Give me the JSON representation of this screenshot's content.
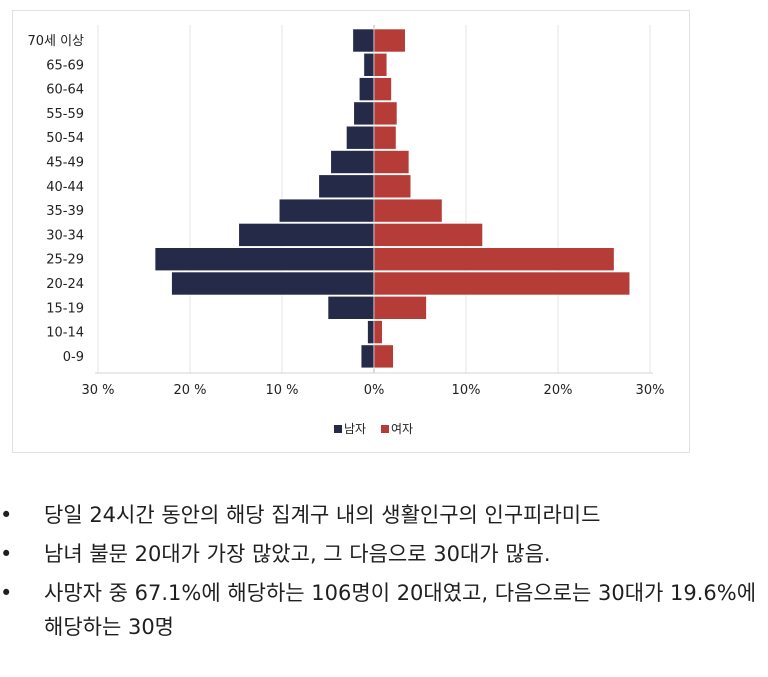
{
  "chart_data": {
    "type": "bar",
    "orientation": "horizontal-pyramid",
    "categories": [
      "70세 이상",
      "65-69",
      "60-64",
      "55-59",
      "50-54",
      "45-49",
      "40-44",
      "35-39",
      "30-34",
      "25-29",
      "20-24",
      "15-19",
      "10-14",
      "0-9"
    ],
    "series": [
      {
        "name": "남자",
        "color": "#252a48",
        "values": [
          2.3,
          1.1,
          1.6,
          2.2,
          3.0,
          4.7,
          6.0,
          10.3,
          14.7,
          23.8,
          22.0,
          5.0,
          0.7,
          1.4
        ]
      },
      {
        "name": "여자",
        "color": "#b53c37",
        "values": [
          3.4,
          1.4,
          1.9,
          2.5,
          2.4,
          3.8,
          4.0,
          7.4,
          11.8,
          26.1,
          27.8,
          5.7,
          0.9,
          2.1
        ]
      }
    ],
    "x_ticks": [
      "30 %",
      "20 %",
      "10 %",
      "0%",
      "10%",
      "20%",
      "30%"
    ],
    "xlim": [
      -33,
      33
    ],
    "grid": true,
    "legend_position": "bottom"
  },
  "bullets": [
    "당일 24시간 동안의 해당 집계구 내의 생활인구의 인구피라미드",
    "남녀 불문 20대가 가장 많았고, 그 다음으로 30대가 많음.",
    "사망자 중 67.1%에 해당하는 106명이 20대였고, 다음으로는 30대가 19.6%에 해당하는 30명"
  ]
}
